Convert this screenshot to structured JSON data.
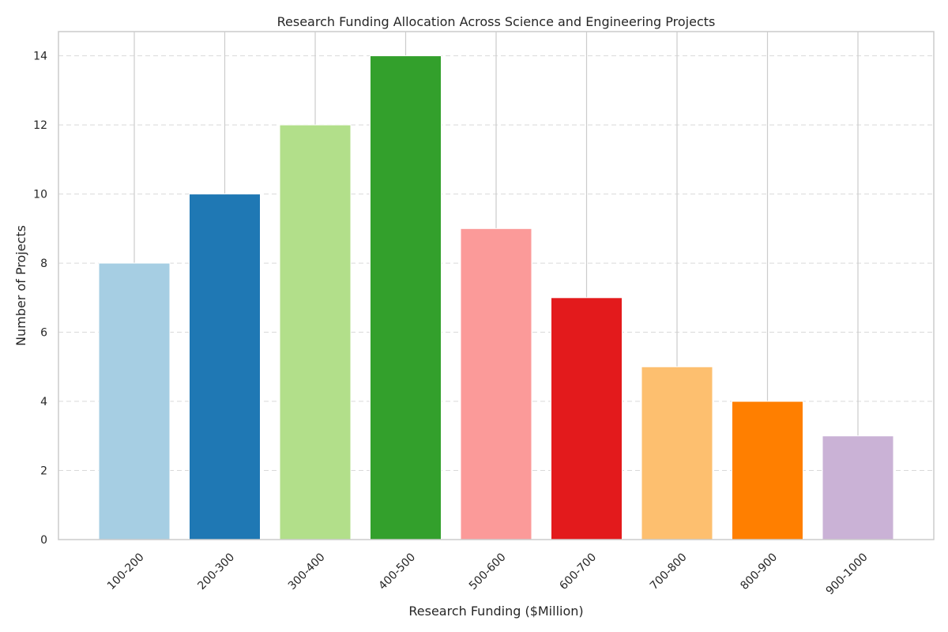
{
  "chart_data": {
    "type": "bar",
    "title": "Research Funding Allocation Across Science and Engineering Projects",
    "xlabel": "Research Funding ($Million)",
    "ylabel": "Number of Projects",
    "categories": [
      "100-200",
      "200-300",
      "300-400",
      "400-500",
      "500-600",
      "600-700",
      "700-800",
      "800-900",
      "900-1000"
    ],
    "values": [
      8,
      10,
      12,
      14,
      9,
      7,
      5,
      4,
      3
    ],
    "colors": [
      "#a6cee3",
      "#1f78b4",
      "#b2df8a",
      "#33a02c",
      "#fb9a99",
      "#e31a1c",
      "#fdbf6f",
      "#ff7f00",
      "#cab2d6"
    ],
    "ylim": [
      0,
      14.7
    ],
    "yticks": [
      0,
      2,
      4,
      6,
      8,
      10,
      12,
      14
    ],
    "grid": "y-dashed",
    "legend": "none"
  }
}
